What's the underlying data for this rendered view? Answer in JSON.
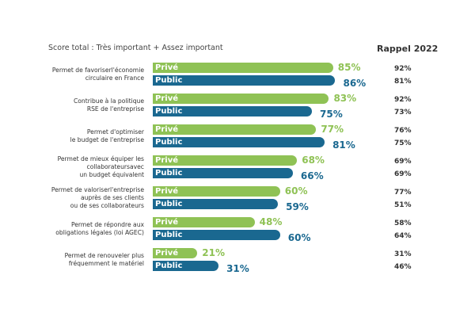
{
  "chart_data": {
    "type": "bar",
    "orientation": "horizontal",
    "title": "Score total : Très important + Assez important",
    "side_column_title": "Rappel 2022",
    "xlabel": "",
    "ylabel": "",
    "xlim": [
      0,
      100
    ],
    "grid": false,
    "categories": [
      "Permet de favoriserl'économie\ncirculaire en France",
      "Contribue à la politique\nRSE de l'entreprise",
      "Permet d'optimiser\nle budget de l'entreprise",
      "Permet de mieux équiper les\ncollaborateursavec\nun budget équivalent",
      "Permet de valoriserl'entreprise\nauprès de ses clients\nou de ses collaborateurs",
      "Permet de répondre aux\nobligations légales (loi AGEC)",
      "Permet de renouveler plus\nfréquemment le matériel"
    ],
    "series": [
      {
        "name": "Privé",
        "color": "#8fc255",
        "values": [
          85,
          83,
          77,
          68,
          60,
          48,
          21
        ],
        "rappel_2022": [
          92,
          92,
          76,
          69,
          77,
          58,
          31
        ]
      },
      {
        "name": "Public",
        "color": "#1a6890",
        "values": [
          86,
          75,
          81,
          66,
          59,
          60,
          31
        ],
        "rappel_2022": [
          81,
          73,
          75,
          69,
          51,
          64,
          46
        ]
      }
    ],
    "value_suffix": "%"
  }
}
